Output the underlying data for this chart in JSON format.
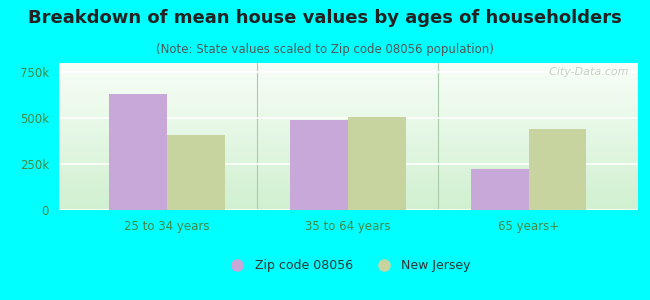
{
  "title": "Breakdown of mean house values by ages of householders",
  "subtitle": "(Note: State values scaled to Zip code 08056 population)",
  "categories": [
    "25 to 34 years",
    "35 to 64 years",
    "65 years+"
  ],
  "zip_values": [
    630000,
    490000,
    225000
  ],
  "nj_values": [
    410000,
    505000,
    440000
  ],
  "zip_color": "#c8a8d8",
  "nj_color": "#c8d4a0",
  "background_color": "#00ffff",
  "plot_bg_top": "#f8fef8",
  "plot_bg_bottom": "#d0f0d0",
  "ylim": [
    0,
    800000
  ],
  "yticks": [
    0,
    250000,
    500000,
    750000
  ],
  "ytick_labels": [
    "0",
    "250k",
    "500k",
    "750k"
  ],
  "legend_zip_label": "Zip code 08056",
  "legend_nj_label": "New Jersey",
  "watermark": "  City-Data.com",
  "bar_width": 0.32,
  "title_fontsize": 13,
  "subtitle_fontsize": 8.5,
  "axis_fontsize": 8.5,
  "legend_fontsize": 9,
  "tick_color": "#448844",
  "grid_color": "#ffffff",
  "divider_color": "#aaccaa"
}
